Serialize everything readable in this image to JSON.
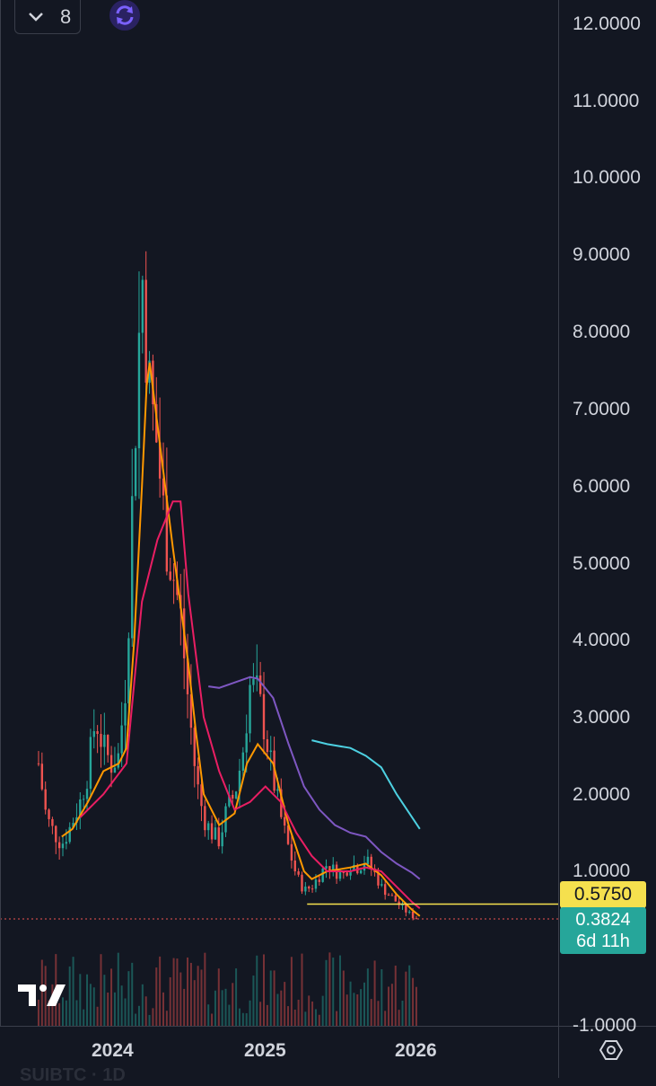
{
  "toolbar": {
    "collapse_count": "8"
  },
  "price_axis": {
    "labels": [
      "12.0000",
      "11.0000",
      "10.0000",
      "9.0000",
      "8.0000",
      "7.0000",
      "6.0000",
      "5.0000",
      "4.0000",
      "3.0000",
      "2.0000",
      "1.0000",
      "-1.0000"
    ],
    "level_value": "0.5750",
    "last_price": "0.3824",
    "countdown": "6d 11h"
  },
  "time_axis": {
    "labels": [
      "2024",
      "2025",
      "2026"
    ]
  },
  "watermark": "SUIBTC · 1D",
  "colors": {
    "background": "#131722",
    "up": "#26a69a",
    "down": "#ef5350",
    "ma_fast": "#ff9800",
    "ma_mid": "#e91e63",
    "ma_slow": "#7e57c2",
    "ma_long": "#4dd0e1",
    "level_line": "#f5e04e"
  },
  "chart_data": {
    "type": "line",
    "title": "",
    "xlabel": "",
    "ylabel": "",
    "ylim": [
      -1,
      12
    ],
    "x_ticks": [
      "2024",
      "2025",
      "2026"
    ],
    "horizontal_level": 0.575,
    "last_price": 0.3824,
    "series": [
      {
        "values": [
          [
            2023.43,
            2.4
          ],
          [
            2023.48,
            1.7
          ],
          [
            2023.53,
            1.5
          ],
          [
            2023.58,
            1.35
          ],
          [
            2023.63,
            1.55
          ],
          [
            2023.7,
            1.9
          ],
          [
            2023.75,
            2.3
          ],
          [
            2023.8,
            3.0
          ],
          [
            2023.85,
            2.6
          ],
          [
            2023.9,
            2.4
          ],
          [
            2023.95,
            2.5
          ],
          [
            2024.0,
            3.6
          ],
          [
            2024.05,
            6.5
          ],
          [
            2024.1,
            8.8
          ],
          [
            2024.15,
            7.2
          ],
          [
            2024.2,
            6.5
          ],
          [
            2024.25,
            5.4
          ],
          [
            2024.3,
            4.9
          ],
          [
            2024.35,
            4.3
          ],
          [
            2024.4,
            3.2
          ],
          [
            2024.45,
            2.2
          ],
          [
            2024.5,
            1.7
          ],
          [
            2024.55,
            1.5
          ],
          [
            2024.6,
            1.4
          ],
          [
            2024.65,
            1.8
          ],
          [
            2024.7,
            2.0
          ],
          [
            2024.75,
            2.5
          ],
          [
            2024.8,
            3.4
          ],
          [
            2024.85,
            3.3
          ],
          [
            2024.9,
            2.8
          ],
          [
            2024.95,
            2.2
          ],
          [
            2025.0,
            1.7
          ],
          [
            2025.05,
            1.3
          ],
          [
            2025.1,
            0.95
          ],
          [
            2025.15,
            0.75
          ],
          [
            2025.2,
            0.8
          ],
          [
            2025.25,
            0.95
          ],
          [
            2025.3,
            1.1
          ],
          [
            2025.35,
            1.0
          ],
          [
            2025.4,
            0.95
          ],
          [
            2025.45,
            1.1
          ],
          [
            2025.5,
            1.05
          ],
          [
            2025.55,
            1.15
          ],
          [
            2025.6,
            1.0
          ],
          [
            2025.65,
            0.8
          ],
          [
            2025.7,
            0.7
          ],
          [
            2025.75,
            0.6
          ],
          [
            2025.8,
            0.5
          ],
          [
            2025.85,
            0.42
          ],
          [
            2025.9,
            0.38
          ]
        ]
      },
      {
        "values": [
          [
            2023.58,
            1.45
          ],
          [
            2023.65,
            1.55
          ],
          [
            2023.75,
            1.9
          ],
          [
            2023.85,
            2.3
          ],
          [
            2023.95,
            2.4
          ],
          [
            2024.0,
            2.6
          ],
          [
            2024.05,
            4.0
          ],
          [
            2024.1,
            6.0
          ],
          [
            2024.13,
            7.3
          ],
          [
            2024.15,
            7.6
          ],
          [
            2024.2,
            6.8
          ],
          [
            2024.3,
            5.2
          ],
          [
            2024.4,
            3.7
          ],
          [
            2024.45,
            2.8
          ],
          [
            2024.5,
            2.0
          ],
          [
            2024.6,
            1.6
          ],
          [
            2024.7,
            1.75
          ],
          [
            2024.78,
            2.4
          ],
          [
            2024.85,
            2.65
          ],
          [
            2024.95,
            2.4
          ],
          [
            2025.05,
            1.6
          ],
          [
            2025.15,
            1.0
          ],
          [
            2025.2,
            0.9
          ],
          [
            2025.3,
            1.0
          ],
          [
            2025.45,
            1.05
          ],
          [
            2025.55,
            1.1
          ],
          [
            2025.65,
            0.95
          ],
          [
            2025.75,
            0.7
          ],
          [
            2025.85,
            0.5
          ],
          [
            2025.9,
            0.42
          ]
        ]
      },
      {
        "values": [
          [
            2023.7,
            1.7
          ],
          [
            2023.85,
            2.0
          ],
          [
            2024.0,
            2.4
          ],
          [
            2024.1,
            4.5
          ],
          [
            2024.2,
            5.3
          ],
          [
            2024.3,
            5.8
          ],
          [
            2024.35,
            5.8
          ],
          [
            2024.4,
            4.6
          ],
          [
            2024.5,
            3.0
          ],
          [
            2024.6,
            2.3
          ],
          [
            2024.7,
            1.8
          ],
          [
            2024.8,
            1.9
          ],
          [
            2024.9,
            2.1
          ],
          [
            2025.0,
            1.9
          ],
          [
            2025.1,
            1.5
          ],
          [
            2025.2,
            1.2
          ],
          [
            2025.3,
            1.0
          ],
          [
            2025.45,
            1.0
          ],
          [
            2025.55,
            1.05
          ],
          [
            2025.65,
            1.0
          ],
          [
            2025.75,
            0.8
          ],
          [
            2025.85,
            0.6
          ],
          [
            2025.9,
            0.52
          ]
        ]
      },
      {
        "values": [
          [
            2024.53,
            3.4
          ],
          [
            2024.6,
            3.38
          ],
          [
            2024.7,
            3.45
          ],
          [
            2024.8,
            3.52
          ],
          [
            2024.85,
            3.5
          ],
          [
            2024.95,
            3.25
          ],
          [
            2025.05,
            2.65
          ],
          [
            2025.15,
            2.1
          ],
          [
            2025.25,
            1.8
          ],
          [
            2025.35,
            1.6
          ],
          [
            2025.45,
            1.5
          ],
          [
            2025.55,
            1.45
          ],
          [
            2025.65,
            1.25
          ],
          [
            2025.75,
            1.1
          ],
          [
            2025.85,
            0.98
          ],
          [
            2025.9,
            0.9
          ]
        ]
      },
      {
        "values": [
          [
            2025.2,
            2.7
          ],
          [
            2025.3,
            2.65
          ],
          [
            2025.45,
            2.6
          ],
          [
            2025.55,
            2.5
          ],
          [
            2025.65,
            2.35
          ],
          [
            2025.75,
            2.0
          ],
          [
            2025.85,
            1.7
          ],
          [
            2025.9,
            1.55
          ]
        ]
      }
    ]
  }
}
